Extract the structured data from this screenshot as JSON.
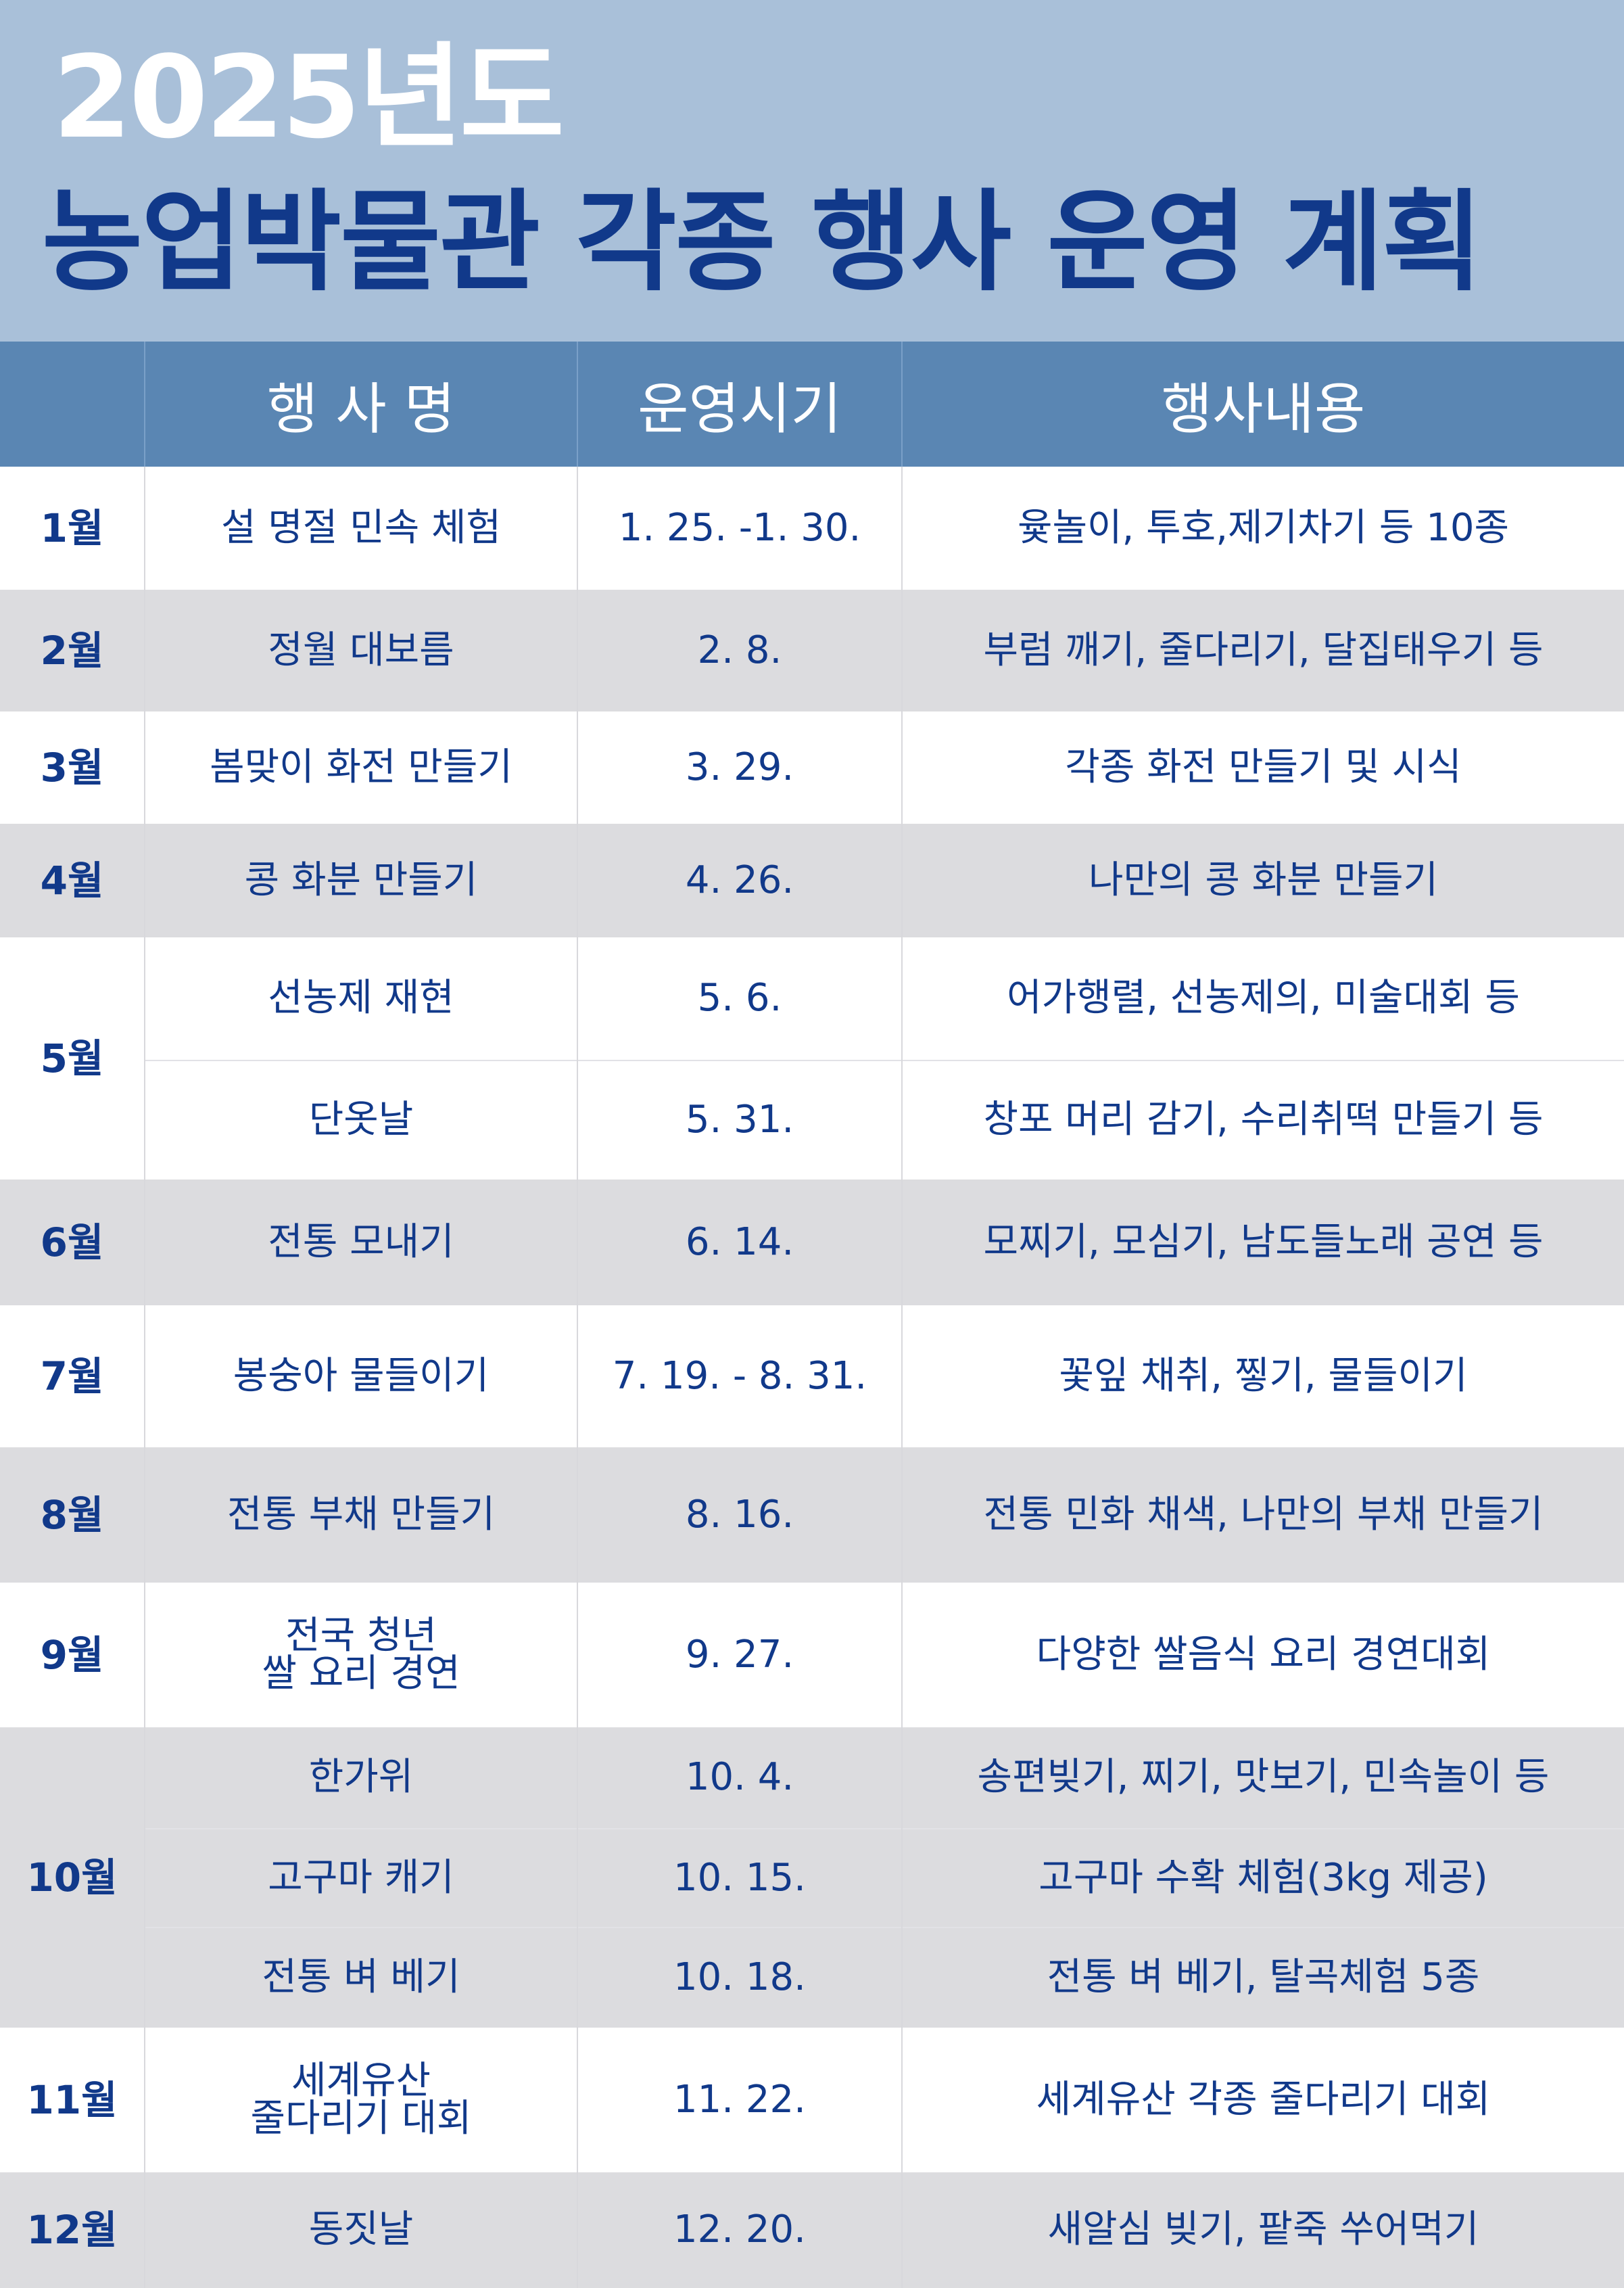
{
  "title": {
    "year": "2025년도",
    "main": "농업박물관 각종 행사 운영 계획"
  },
  "table": {
    "headers": {
      "name": "행 사 명",
      "date": "운영시기",
      "desc": "행사내용"
    },
    "rows": [
      {
        "month": "1월",
        "events": [
          {
            "name": "설 명절 민속 체험",
            "date": "1. 25. -1. 30.",
            "desc": "윷놀이, 투호,제기차기 등 10종"
          }
        ]
      },
      {
        "month": "2월",
        "events": [
          {
            "name": "정월 대보름",
            "date": "2. 8.",
            "desc": "부럼 깨기, 줄다리기, 달집태우기 등"
          }
        ]
      },
      {
        "month": "3월",
        "events": [
          {
            "name": "봄맞이 화전 만들기",
            "date": "3. 29.",
            "desc": "각종 화전 만들기 및 시식"
          }
        ]
      },
      {
        "month": "4월",
        "events": [
          {
            "name": "콩 화분 만들기",
            "date": "4. 26.",
            "desc": "나만의 콩 화분 만들기"
          }
        ]
      },
      {
        "month": "5월",
        "events": [
          {
            "name": "선농제  재현",
            "date": "5. 6.",
            "desc": "어가행렬, 선농제의, 미술대회 등"
          },
          {
            "name": "단옷날",
            "date": "5. 31.",
            "desc": "창포 머리 감기, 수리취떡 만들기 등"
          }
        ]
      },
      {
        "month": "6월",
        "events": [
          {
            "name": "전통 모내기",
            "date": "6. 14.",
            "desc": "모찌기, 모심기, 남도들노래 공연 등"
          }
        ]
      },
      {
        "month": "7월",
        "events": [
          {
            "name": "봉숭아 물들이기",
            "date": "7. 19. - 8. 31.",
            "desc": "꽃잎 채취, 찧기, 물들이기"
          }
        ]
      },
      {
        "month": "8월",
        "events": [
          {
            "name": "전통 부채 만들기",
            "date": "8. 16.",
            "desc": "전통 민화 채색, 나만의 부채 만들기"
          }
        ]
      },
      {
        "month": "9월",
        "events": [
          {
            "name_lines": [
              "전국 청년",
              "쌀 요리 경연"
            ],
            "date": "9. 27.",
            "desc": "다양한 쌀음식 요리 경연대회"
          }
        ]
      },
      {
        "month": "10월",
        "events": [
          {
            "name": "한가위",
            "date": "10. 4.",
            "desc": "송편빚기, 찌기,  맛보기, 민속놀이 등"
          },
          {
            "name": "고구마 캐기",
            "date": "10. 15.",
            "desc": "고구마 수확 체험(3kg 제공)"
          },
          {
            "name": "전통 벼 베기",
            "date": "10. 18.",
            "desc": "전통 벼 베기, 탈곡체험 5종"
          }
        ]
      },
      {
        "month": "11월",
        "events": [
          {
            "name_lines": [
              "세계유산",
              "줄다리기 대회"
            ],
            "date": "11. 22.",
            "desc": "세계유산 각종 줄다리기 대회"
          }
        ]
      },
      {
        "month": "12월",
        "events": [
          {
            "name": "동짓날",
            "date": "12. 20.",
            "desc": "새알심 빚기, 팥죽 쑤어먹기"
          }
        ]
      }
    ]
  },
  "colors": {
    "header_bg": "#a9c0d9",
    "table_header_bg": "#5a86b3",
    "text_navy": "#11398a",
    "row_gray": "#dcdcdf"
  }
}
